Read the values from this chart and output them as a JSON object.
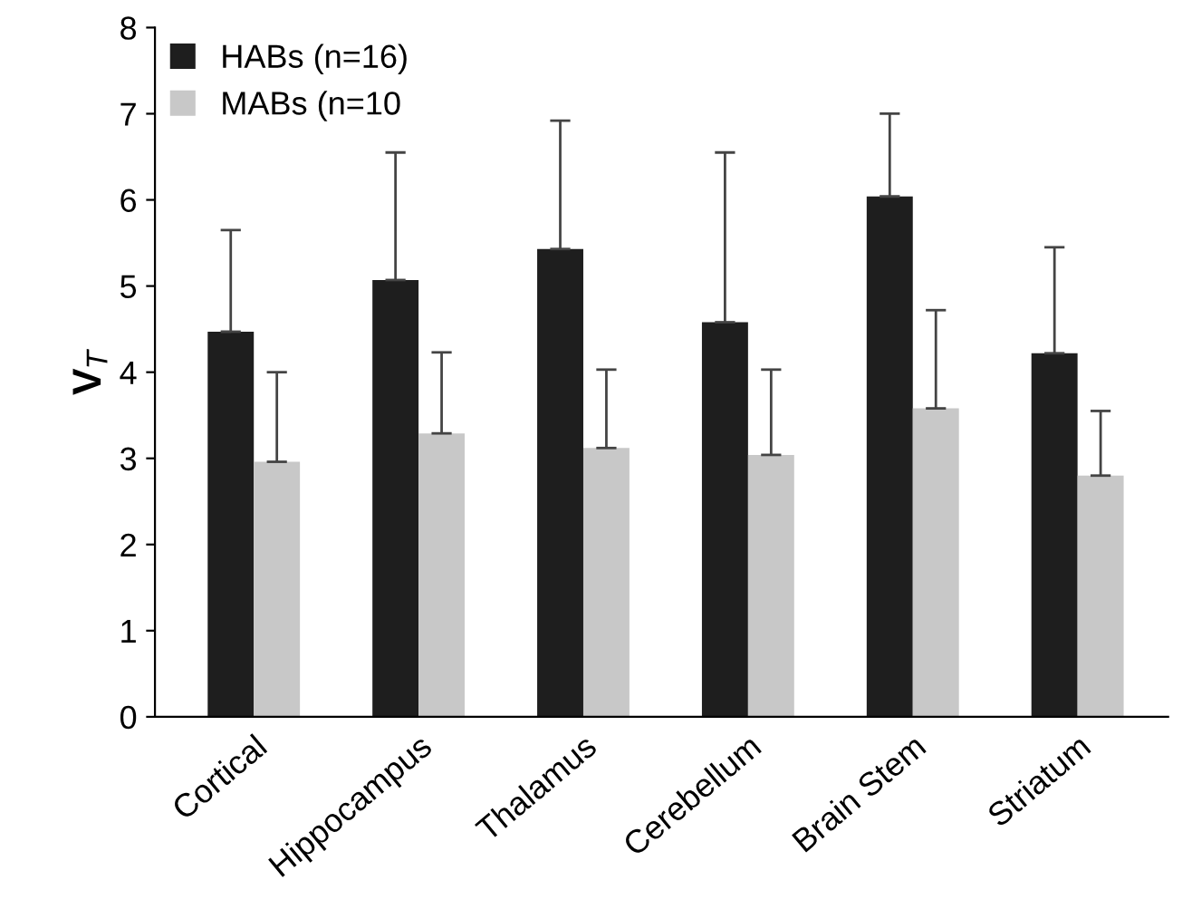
{
  "chart_data": {
    "type": "bar",
    "ylabel": "V$_{T}$",
    "categories": [
      "Cortical",
      "Hippocampus",
      "Thalamus",
      "Cerebellum",
      "Brain Stem",
      "Striatum"
    ],
    "series": [
      {
        "name": "HABs (n=16)",
        "color": "#1e1e1e",
        "values": [
          4.47,
          5.07,
          5.43,
          4.58,
          6.04,
          4.22
        ],
        "errors": [
          [
            4.47,
            5.65
          ],
          [
            5.07,
            6.55
          ],
          [
            5.43,
            6.92
          ],
          [
            4.58,
            6.55
          ],
          [
            6.04,
            7.0
          ],
          [
            4.22,
            5.45
          ]
        ]
      },
      {
        "name": "MABs (n=10",
        "color": "#c8c8c8",
        "values": [
          2.96,
          3.29,
          3.12,
          3.04,
          3.58,
          2.8
        ],
        "errors": [
          [
            2.96,
            4.0
          ],
          [
            3.29,
            4.23
          ],
          [
            3.12,
            4.03
          ],
          [
            3.04,
            4.03
          ],
          [
            3.58,
            4.72
          ],
          [
            2.8,
            3.55
          ]
        ]
      }
    ],
    "ylim": [
      0,
      8
    ],
    "yticks": [
      0,
      1,
      2,
      3,
      4,
      5,
      6,
      7,
      8
    ],
    "grid": false,
    "legend": "top left"
  }
}
